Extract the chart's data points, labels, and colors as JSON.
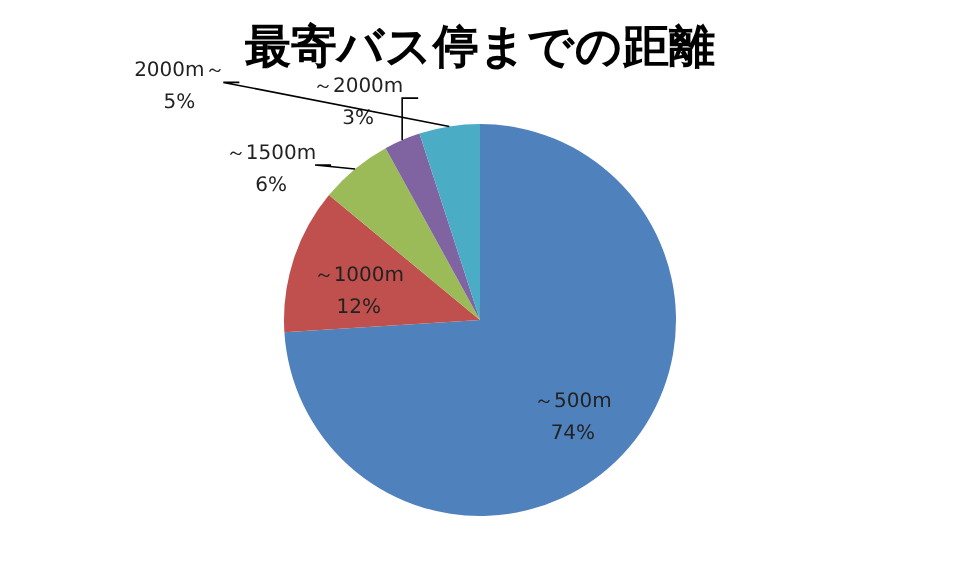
{
  "chart_data": {
    "type": "pie",
    "title": "最寄バス停までの距離",
    "categories": [
      "～500m",
      "～1000m",
      "～1500m",
      "～2000m",
      "2000m～"
    ],
    "values": [
      74,
      12,
      6,
      3,
      5
    ],
    "value_labels": [
      "74%",
      "12%",
      "6%",
      "3%",
      "5%"
    ],
    "colors": [
      "#4f81bd",
      "#c0504d",
      "#9bbb59",
      "#8064a2",
      "#4bacc6"
    ],
    "legend": false
  }
}
